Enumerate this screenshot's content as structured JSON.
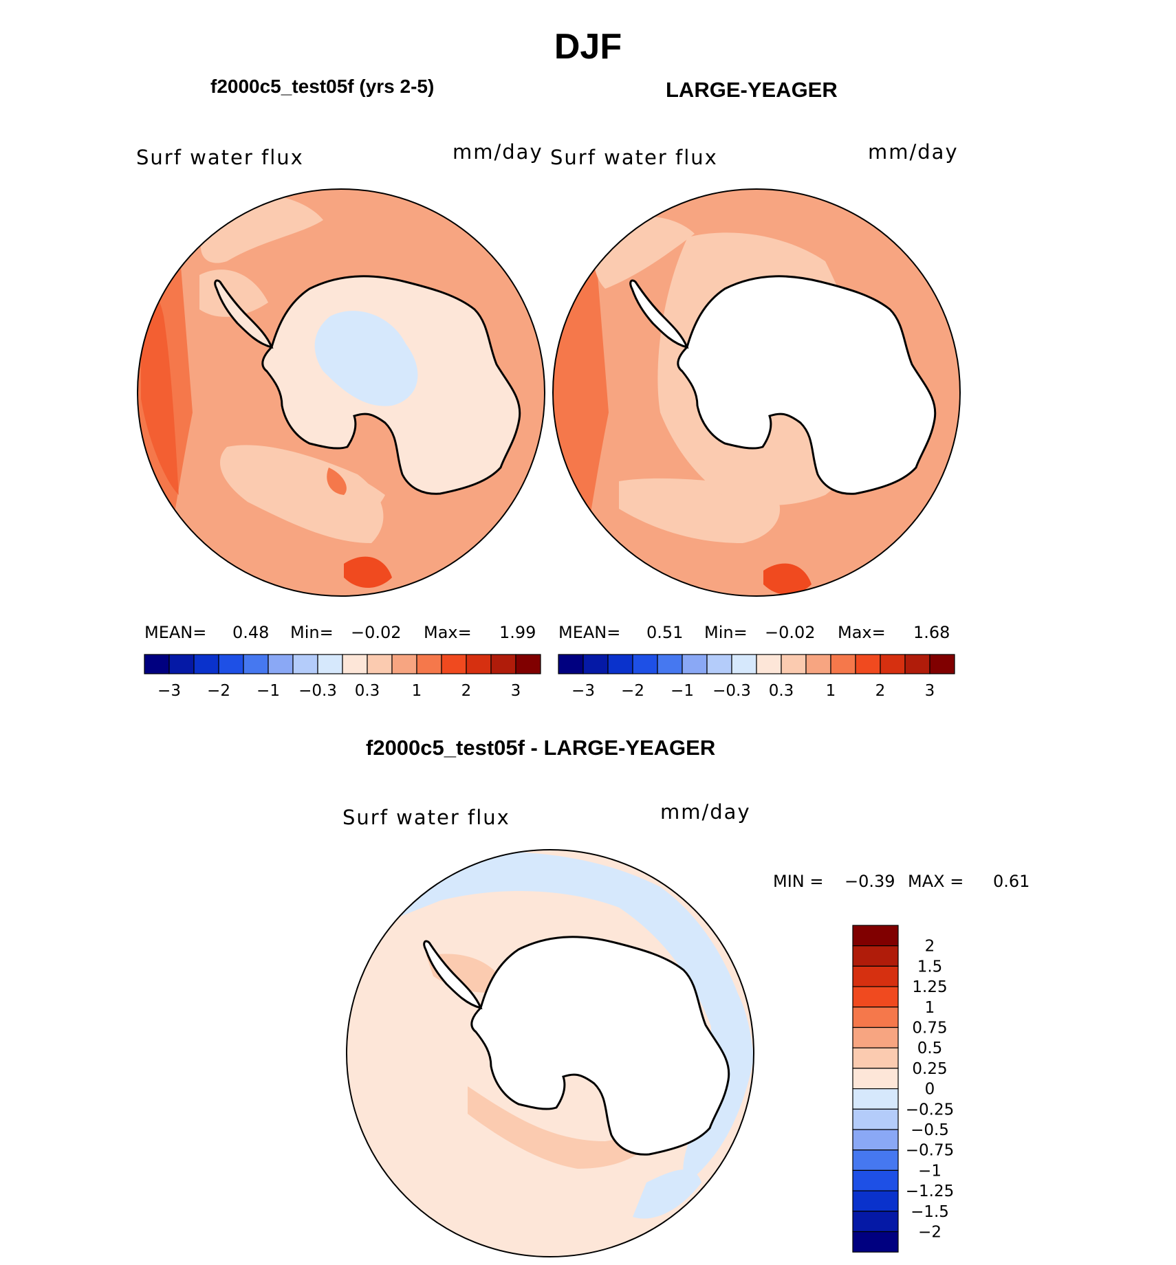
{
  "figure_title": "DJF",
  "panels": [
    {
      "id": "left",
      "title": "f2000c5_test05f (yrs 2-5)",
      "variable_label": "Surf water flux",
      "units": "mm/day",
      "stats": {
        "mean_label": "MEAN=",
        "mean": "0.48",
        "min_label": "Min=",
        "min": "−0.02",
        "max_label": "Max=",
        "max": "1.99"
      }
    },
    {
      "id": "right",
      "title": "LARGE-YEAGER",
      "variable_label": "Surf water flux",
      "units": "mm/day",
      "stats": {
        "mean_label": "MEAN=",
        "mean": "0.51",
        "min_label": "Min=",
        "min": "−0.02",
        "max_label": "Max=",
        "max": "1.68"
      }
    },
    {
      "id": "diff",
      "title": "f2000c5_test05f - LARGE-YEAGER",
      "variable_label": "Surf water flux",
      "units": "mm/day",
      "stats": {
        "min_label": "MIN =",
        "min": "−0.39",
        "max_label": "MAX =",
        "max": "0.61"
      }
    }
  ],
  "colorbar_horizontal": {
    "colors": [
      "#000080",
      "#0519a6",
      "#0a32cc",
      "#1e50e6",
      "#4678f0",
      "#8aa8f5",
      "#b4ccfa",
      "#d6e8fc",
      "#fde6d8",
      "#fbcbb0",
      "#f7a581",
      "#f5784b",
      "#f04a1f",
      "#d63010",
      "#b01c0a",
      "#800000"
    ],
    "tick_labels": [
      "−3",
      "−2",
      "−1",
      "−0.3",
      "0.3",
      "1",
      "2",
      "3"
    ]
  },
  "colorbar_vertical": {
    "colors_top_to_bottom": [
      "#800000",
      "#b01c0a",
      "#d63010",
      "#f04a1f",
      "#f5784b",
      "#f7a581",
      "#fbcbb0",
      "#fde6d8",
      "#d6e8fc",
      "#b4ccfa",
      "#8aa8f5",
      "#4678f0",
      "#1e50e6",
      "#0a32cc",
      "#0519a6",
      "#000080"
    ],
    "tick_labels": [
      "2",
      "1.5",
      "1.25",
      "1",
      "0.75",
      "0.5",
      "0.25",
      "0",
      "−0.25",
      "−0.5",
      "−0.75",
      "−1",
      "−1.25",
      "−1.5",
      "−2"
    ]
  }
}
